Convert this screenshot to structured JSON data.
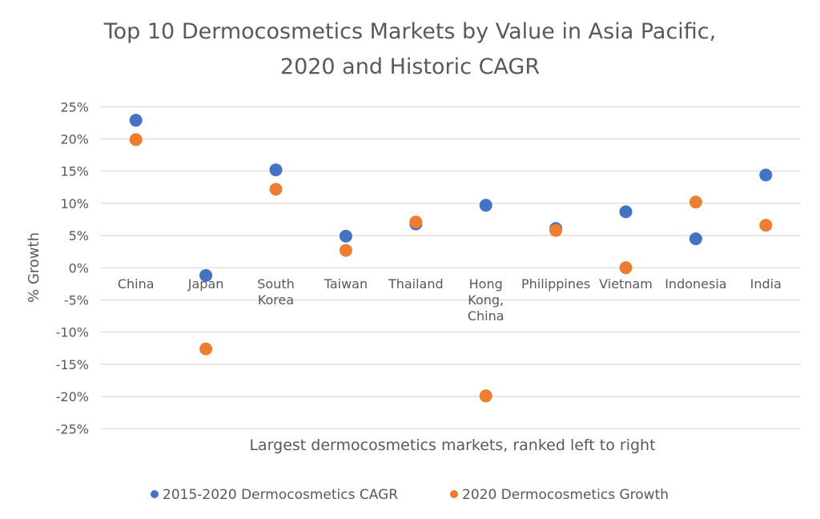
{
  "chart_data": {
    "type": "scatter",
    "title": "Top 10 Dermocosmetics Markets by Value in Asia Pacific, 2020 and Historic CAGR",
    "title_lines": [
      "Top 10 Dermocosmetics Markets by Value in Asia Pacific,",
      "2020 and Historic CAGR"
    ],
    "xlabel": "Largest dermocosmetics markets, ranked left to right",
    "ylabel": "% Growth",
    "categories": [
      "China",
      "Japan",
      "South Korea",
      "Taiwan",
      "Thailand",
      "Hong Kong, China",
      "Philippines",
      "Vietnam",
      "Indonesia",
      "India"
    ],
    "category_lines": [
      [
        "China"
      ],
      [
        "Japan"
      ],
      [
        "South",
        "Korea"
      ],
      [
        "Taiwan"
      ],
      [
        "Thailand"
      ],
      [
        "Hong",
        "Kong,",
        "China"
      ],
      [
        "Philippines"
      ],
      [
        "Vietnam"
      ],
      [
        "Indonesia"
      ],
      [
        "India"
      ]
    ],
    "ylim": [
      -25,
      25
    ],
    "yticks": [
      25,
      20,
      15,
      10,
      5,
      0,
      -5,
      -10,
      -15,
      -20,
      -25
    ],
    "ytick_labels": [
      "25%",
      "20%",
      "15%",
      "10%",
      "5%",
      "0%",
      "-5%",
      "-10%",
      "-15%",
      "-20%",
      "-25%"
    ],
    "grid": true,
    "legend_position": "bottom",
    "series": [
      {
        "name": "2015-2020 Dermocosmetics CAGR",
        "color": "#4472C4",
        "values": [
          22.9,
          -1.2,
          15.2,
          4.9,
          6.8,
          9.7,
          6.1,
          8.7,
          4.5,
          14.4
        ]
      },
      {
        "name": "2020 Dermocosmetics Growth",
        "color": "#ED7D31",
        "values": [
          19.9,
          -12.6,
          12.2,
          2.7,
          7.1,
          -19.9,
          5.8,
          0.0,
          10.2,
          6.6
        ]
      }
    ]
  }
}
